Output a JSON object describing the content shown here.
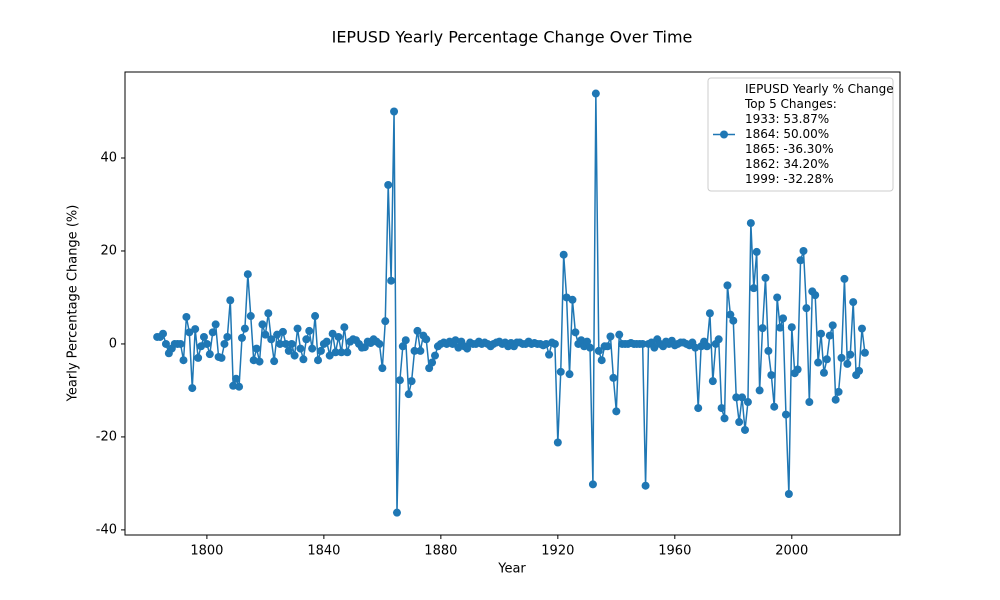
{
  "chart_data": {
    "type": "line",
    "title": "IEPUSD Yearly Percentage Change Over Time",
    "xlabel": "Year",
    "ylabel": "Yearly Percentage Change (%)",
    "legend_position": "upper right",
    "legend_lines": [
      "Top 5 Changes:",
      "1933: 53.87%",
      "1864: 50.00%",
      "1865: -36.30%",
      "1862: 34.20%",
      "1999: -32.28%"
    ],
    "xlim": [
      1772,
      2037
    ],
    "ylim": [
      -41.1,
      58.5
    ],
    "xticks": [
      1800,
      1840,
      1880,
      1920,
      1960,
      2000
    ],
    "yticks": [
      -40,
      -20,
      0,
      20,
      40
    ],
    "grid": false,
    "x": [
      1783,
      1784,
      1785,
      1786,
      1787,
      1788,
      1789,
      1790,
      1791,
      1792,
      1793,
      1794,
      1795,
      1796,
      1797,
      1798,
      1799,
      1800,
      1801,
      1802,
      1803,
      1804,
      1805,
      1806,
      1807,
      1808,
      1809,
      1810,
      1811,
      1812,
      1813,
      1814,
      1815,
      1816,
      1817,
      1818,
      1819,
      1820,
      1821,
      1822,
      1823,
      1824,
      1825,
      1826,
      1827,
      1828,
      1829,
      1830,
      1831,
      1832,
      1833,
      1834,
      1835,
      1836,
      1837,
      1838,
      1839,
      1840,
      1841,
      1842,
      1843,
      1844,
      1845,
      1846,
      1847,
      1848,
      1849,
      1850,
      1851,
      1852,
      1853,
      1854,
      1855,
      1856,
      1857,
      1858,
      1859,
      1860,
      1861,
      1862,
      1863,
      1864,
      1865,
      1866,
      1867,
      1868,
      1869,
      1870,
      1871,
      1872,
      1873,
      1874,
      1875,
      1876,
      1877,
      1878,
      1879,
      1880,
      1881,
      1882,
      1883,
      1884,
      1885,
      1886,
      1887,
      1888,
      1889,
      1890,
      1891,
      1892,
      1893,
      1894,
      1895,
      1896,
      1897,
      1898,
      1899,
      1900,
      1901,
      1902,
      1903,
      1904,
      1905,
      1906,
      1907,
      1908,
      1909,
      1910,
      1911,
      1912,
      1913,
      1914,
      1915,
      1916,
      1917,
      1918,
      1919,
      1920,
      1921,
      1922,
      1923,
      1924,
      1925,
      1926,
      1927,
      1928,
      1929,
      1930,
      1931,
      1932,
      1933,
      1934,
      1935,
      1936,
      1937,
      1938,
      1939,
      1940,
      1941,
      1942,
      1943,
      1944,
      1945,
      1946,
      1947,
      1948,
      1949,
      1950,
      1951,
      1952,
      1953,
      1954,
      1955,
      1956,
      1957,
      1958,
      1959,
      1960,
      1961,
      1962,
      1963,
      1964,
      1965,
      1966,
      1967,
      1968,
      1969,
      1970,
      1971,
      1972,
      1973,
      1974,
      1975,
      1976,
      1977,
      1978,
      1979,
      1980,
      1981,
      1982,
      1983,
      1984,
      1985,
      1986,
      1987,
      1988,
      1989,
      1990,
      1991,
      1992,
      1993,
      1994,
      1995,
      1996,
      1997,
      1998,
      1999,
      2000,
      2001,
      2002,
      2003,
      2004,
      2005,
      2006,
      2007,
      2008,
      2009,
      2010,
      2011,
      2012,
      2013,
      2014,
      2015,
      2016,
      2017,
      2018,
      2019,
      2020,
      2021,
      2022,
      2023,
      2024,
      2025
    ],
    "series": [
      {
        "name": "IEPUSD Yearly % Change",
        "color": "#1f77b4",
        "values": [
          1.5,
          1.5,
          2.2,
          0,
          -2,
          -1,
          0,
          0,
          0,
          -3.5,
          5.8,
          2.5,
          -9.5,
          3.2,
          -3,
          -0.5,
          1.5,
          0,
          -2.2,
          2.5,
          4.2,
          -2.8,
          -3,
          0,
          1.5,
          9.4,
          -9,
          -7.5,
          -9.2,
          1.3,
          3.3,
          15,
          6,
          -3.5,
          -1,
          -3.8,
          4.2,
          2,
          6.6,
          1,
          -3.7,
          2,
          0,
          2.6,
          0,
          -1.5,
          0,
          -2.5,
          3.3,
          -1,
          -3.3,
          1,
          2.8,
          -1,
          6,
          -3.5,
          -1.5,
          0,
          0.5,
          -2.5,
          2.2,
          -1.8,
          1.5,
          -1.8,
          3.6,
          -1.8,
          0.5,
          1,
          0.8,
          0,
          -0.8,
          -0.7,
          0.5,
          0.2,
          1,
          0.5,
          0,
          -5.2,
          4.9,
          34.2,
          13.6,
          50,
          -36.3,
          -7.8,
          -0.5,
          0.8,
          -10.8,
          -8,
          -1.5,
          2.8,
          -1.5,
          1.8,
          1,
          -5.2,
          -4,
          -2.5,
          -0.5,
          0,
          0.3,
          0,
          0.5,
          0,
          0.8,
          -0.8,
          0.5,
          -0.5,
          -1,
          0.3,
          0,
          0,
          0.5,
          0,
          0.3,
          0,
          -0.5,
          0,
          0.3,
          0.5,
          0,
          0.3,
          -0.5,
          0.2,
          -0.5,
          0.3,
          0.3,
          0,
          0,
          0.5,
          0,
          0.2,
          0,
          0,
          -0.3,
          0,
          -2.3,
          0.3,
          0,
          -21.2,
          -6,
          19.2,
          10,
          -6.5,
          9.5,
          2.5,
          0,
          0.8,
          -0.5,
          0.5,
          -0.8,
          -30.2,
          53.87,
          -1.5,
          -3.5,
          -0.5,
          -0.5,
          1.6,
          -7.3,
          -14.5,
          2,
          0,
          0,
          0,
          0.2,
          0,
          0,
          0,
          0,
          -30.5,
          0,
          0.3,
          -0.8,
          1,
          0,
          -0.5,
          0.5,
          0,
          0.7,
          -0.3,
          0,
          0.3,
          0.3,
          0,
          -0.3,
          0.3,
          -0.8,
          -13.8,
          -0.5,
          0.5,
          -0.5,
          6.6,
          -8,
          0,
          1,
          -13.8,
          -16,
          12.6,
          6.3,
          5,
          -11.5,
          -16.8,
          -11.5,
          -18.5,
          -12.5,
          26,
          12,
          19.8,
          -10,
          3.4,
          14.2,
          -1.5,
          -6.7,
          -13.5,
          10,
          3.5,
          5.5,
          -15.2,
          -32.28,
          3.6,
          -6.3,
          -5.5,
          18,
          20,
          7.7,
          -12.5,
          11.3,
          10.5,
          -4,
          2.2,
          -6.2,
          -3.3,
          1.8,
          4,
          -12,
          -10.3,
          -3,
          14,
          -4.3,
          -2.3,
          9,
          -6.7,
          -5.8,
          3.3,
          -1.9
        ]
      }
    ]
  }
}
